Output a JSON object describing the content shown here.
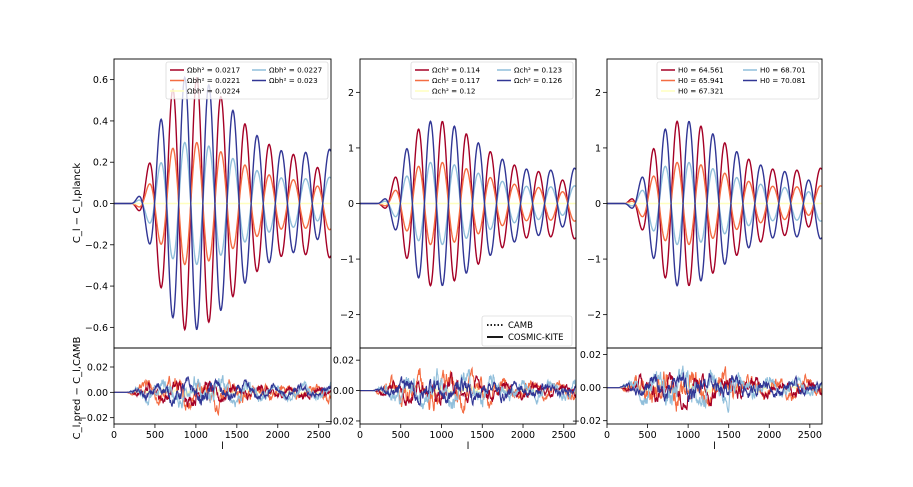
{
  "chart_data": {
    "type": "line",
    "x_label": "l",
    "x_range": [
      0,
      2650
    ],
    "x_ticks": [
      "0",
      "500",
      "1000",
      "1500",
      "2000",
      "2500"
    ],
    "top_y_label": "C_l − C_l,planck",
    "bottom_y_label": "C_l,pred − C_l,CAMB",
    "line_style_legend": [
      {
        "label": "CAMB",
        "style": "dotted"
      },
      {
        "label": "COSMIC-KITE",
        "style": "solid"
      }
    ],
    "panels": [
      {
        "parameter": "omega_b",
        "top_ylim": [
          -0.7,
          0.7
        ],
        "top_yticks": [
          -0.6,
          -0.4,
          -0.2,
          0.0,
          0.2,
          0.4,
          0.6
        ],
        "top_ytick_labels": [
          "−0.6",
          "−0.4",
          "−0.2",
          "0.0",
          "0.2",
          "0.4",
          "0.6"
        ],
        "bottom_ylim": [
          -0.025,
          0.035
        ],
        "bottom_yticks": [
          -0.02,
          0.0,
          0.02
        ],
        "bottom_ytick_labels": [
          "−0.02",
          "0.00",
          "0.02"
        ],
        "legend": [
          {
            "label": "Ωbh² = 0.0217",
            "color": "#a50026"
          },
          {
            "label": "Ωbh² = 0.0221",
            "color": "#f46d43"
          },
          {
            "label": "Ωbh² = 0.0224",
            "color": "#ffffbf"
          },
          {
            "label": "Ωbh² = 0.0227",
            "color": "#91bfdb"
          },
          {
            "label": "Ωbh² = 0.023",
            "color": "#313695"
          }
        ],
        "series": [
          {
            "name": "Ωbh² = 0.0217",
            "color": "#a50026",
            "amp": -0.62
          },
          {
            "name": "Ωbh² = 0.0221",
            "color": "#f46d43",
            "amp": -0.3
          },
          {
            "name": "Ωbh² = 0.0224",
            "color": "#ffffbf",
            "amp": 0.0
          },
          {
            "name": "Ωbh² = 0.0227",
            "color": "#91bfdb",
            "amp": 0.3
          },
          {
            "name": "Ωbh² = 0.023",
            "color": "#313695",
            "amp": 0.62
          }
        ]
      },
      {
        "parameter": "omega_c",
        "top_ylim": [
          -2.6,
          2.6
        ],
        "top_yticks": [
          -2,
          -1,
          0,
          1,
          2
        ],
        "top_ytick_labels": [
          "−2",
          "−1",
          "0",
          "1",
          "2"
        ],
        "bottom_ylim": [
          -0.022,
          0.028
        ],
        "bottom_yticks": [
          -0.02,
          0.0,
          0.02
        ],
        "bottom_ytick_labels": [
          "−0.02",
          "0.00",
          "0.02"
        ],
        "legend": [
          {
            "label": "Ωch² = 0.114",
            "color": "#a50026"
          },
          {
            "label": "Ωch² = 0.117",
            "color": "#f46d43"
          },
          {
            "label": "Ωch² = 0.12",
            "color": "#ffffbf"
          },
          {
            "label": "Ωch² = 0.123",
            "color": "#91bfdb"
          },
          {
            "label": "Ωch² = 0.126",
            "color": "#313695"
          }
        ],
        "series": [
          {
            "name": "Ωch² = 0.114",
            "color": "#a50026",
            "amp": -1.5
          },
          {
            "name": "Ωch² = 0.117",
            "color": "#f46d43",
            "amp": -0.75
          },
          {
            "name": "Ωch² = 0.12",
            "color": "#ffffbf",
            "amp": 0.0
          },
          {
            "name": "Ωch² = 0.123",
            "color": "#91bfdb",
            "amp": 0.75
          },
          {
            "name": "Ωch² = 0.126",
            "color": "#313695",
            "amp": 1.5
          }
        ]
      },
      {
        "parameter": "H0",
        "top_ylim": [
          -2.6,
          2.6
        ],
        "top_yticks": [
          -2,
          -1,
          0,
          1,
          2
        ],
        "top_ytick_labels": [
          "−2",
          "−1",
          "0",
          "1",
          "2"
        ],
        "bottom_ylim": [
          -0.022,
          0.024
        ],
        "bottom_yticks": [
          -0.02,
          0.0,
          0.02
        ],
        "bottom_ytick_labels": [
          "−0.02",
          "0.00",
          "0.02"
        ],
        "legend": [
          {
            "label": "H0 = 64.561",
            "color": "#a50026"
          },
          {
            "label": "H0 = 65.941",
            "color": "#f46d43"
          },
          {
            "label": "H0 = 67.321",
            "color": "#ffffbf"
          },
          {
            "label": "H0 = 68.701",
            "color": "#91bfdb"
          },
          {
            "label": "H0 = 70.081",
            "color": "#313695"
          }
        ],
        "series": [
          {
            "name": "H0 = 64.561",
            "color": "#a50026",
            "amp": 1.5
          },
          {
            "name": "H0 = 65.941",
            "color": "#f46d43",
            "amp": 0.75
          },
          {
            "name": "H0 = 67.321",
            "color": "#ffffbf",
            "amp": 0.0
          },
          {
            "name": "H0 = 68.701",
            "color": "#91bfdb",
            "amp": -0.75
          },
          {
            "name": "H0 = 70.081",
            "color": "#313695",
            "amp": -1.5
          }
        ]
      }
    ]
  }
}
